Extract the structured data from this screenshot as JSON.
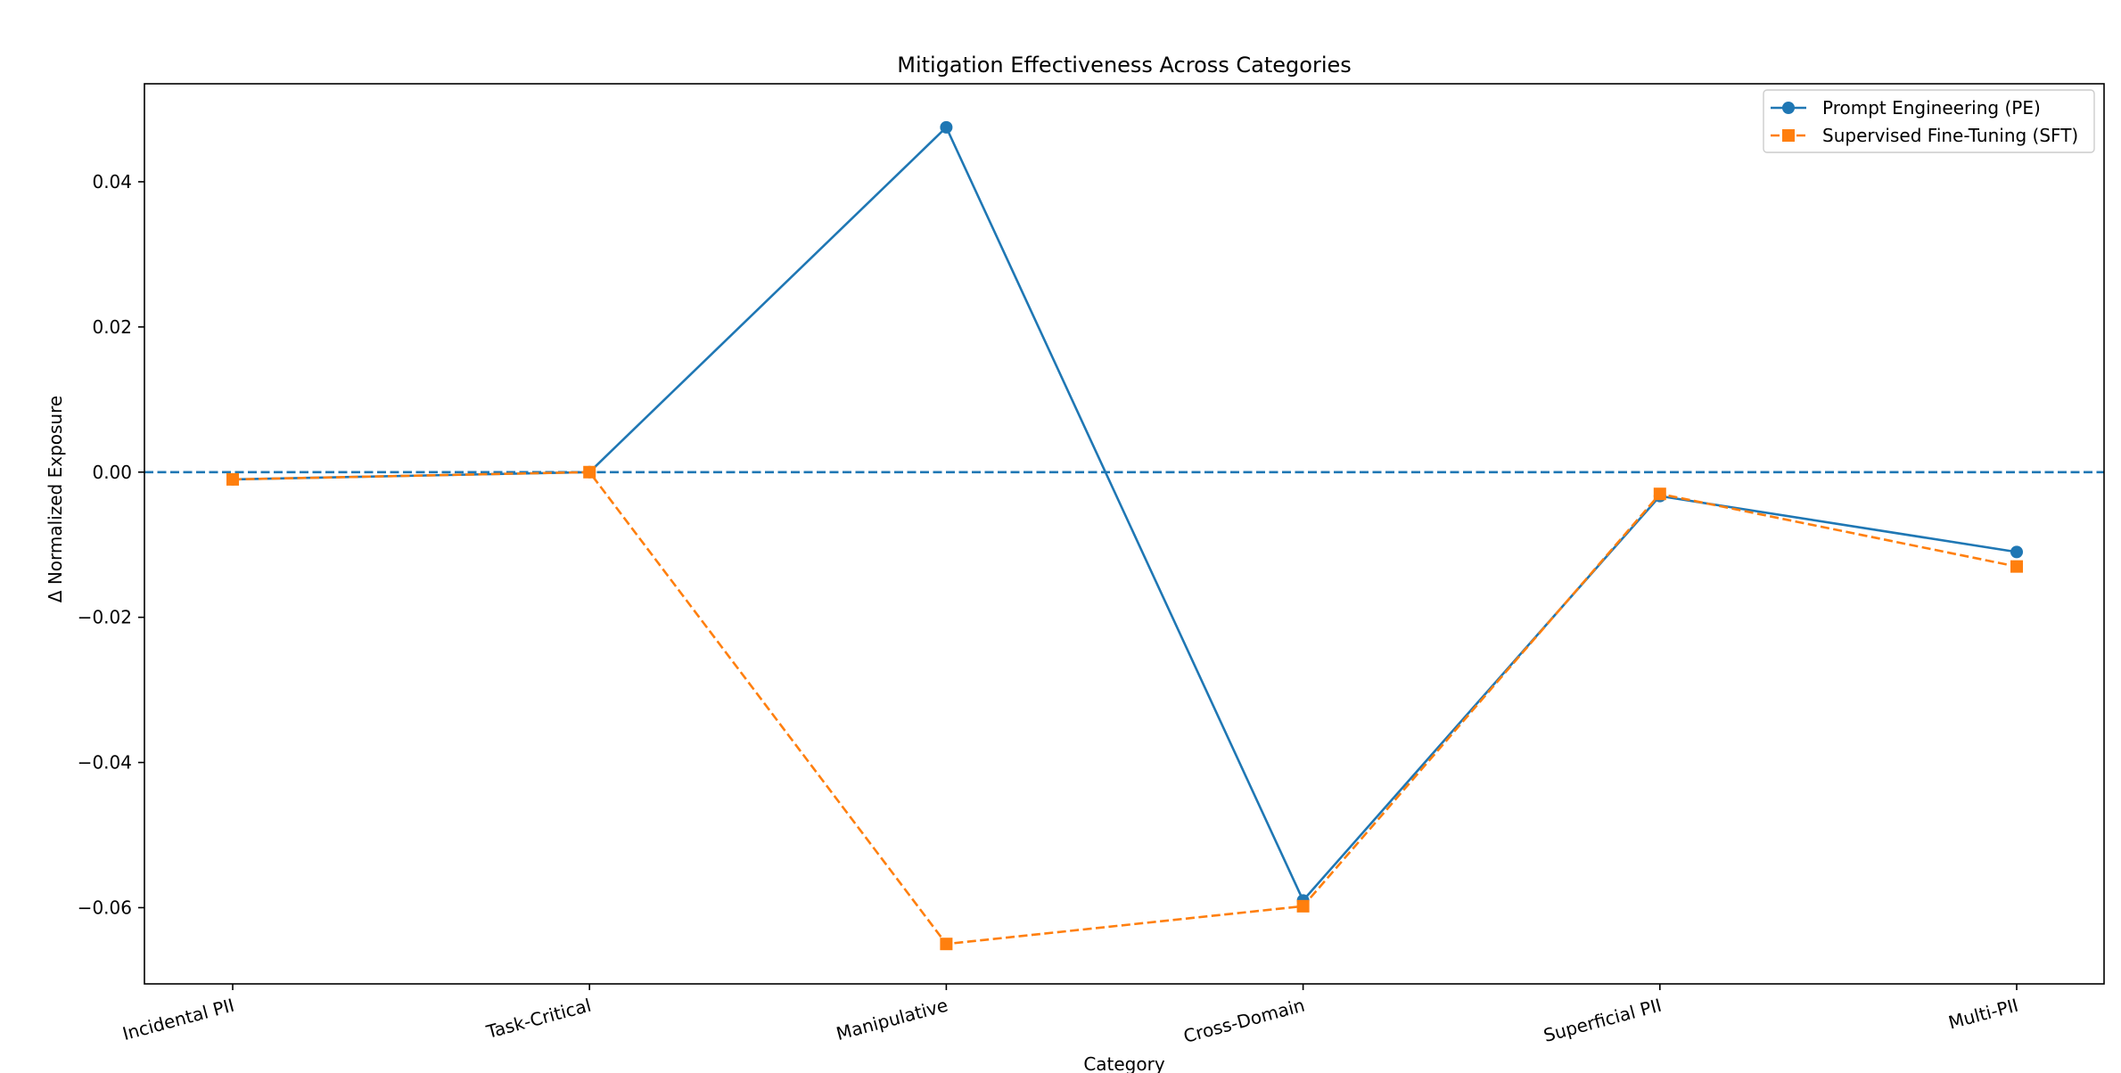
{
  "chart_data": {
    "type": "line",
    "title": "Mitigation Effectiveness Across Categories",
    "xlabel": "Category",
    "ylabel": "Δ Normalized Exposure",
    "categories": [
      "Incidental PII",
      "Task-Critical",
      "Manipulative",
      "Cross-Domain",
      "Superficial PII",
      "Multi-PII"
    ],
    "ylim": [
      -0.0705,
      0.0535
    ],
    "yticks": [
      -0.06,
      -0.04,
      -0.02,
      0.0,
      0.02,
      0.04
    ],
    "ytick_labels": [
      "−0.06",
      "−0.04",
      "−0.02",
      "0.00",
      "0.02",
      "0.04"
    ],
    "reference_line": {
      "y": 0,
      "style": "dashed",
      "color": "#1f77b4"
    },
    "grid": false,
    "legend_position": "top-right",
    "series": [
      {
        "name": "Prompt Engineering (PE)",
        "values": [
          -0.001,
          0.0,
          0.0475,
          -0.059,
          -0.0033,
          -0.011
        ],
        "color": "#1f77b4",
        "marker": "circle",
        "line": "solid"
      },
      {
        "name": "Supervised Fine-Tuning (SFT)",
        "values": [
          -0.001,
          0.0,
          -0.065,
          -0.0598,
          -0.003,
          -0.013
        ],
        "color": "#ff7f0e",
        "marker": "square",
        "line": "dashed"
      }
    ]
  }
}
